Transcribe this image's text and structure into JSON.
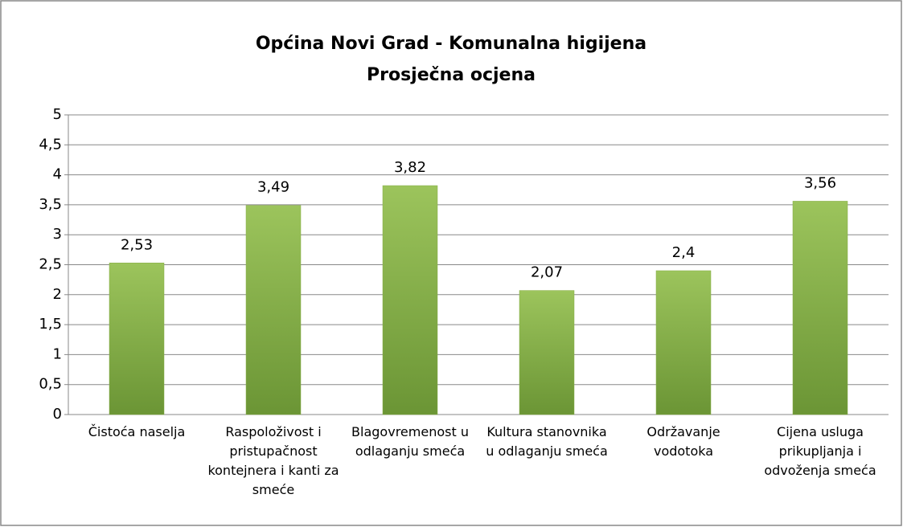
{
  "chart_data": {
    "type": "bar",
    "title": "Općina Novi Grad - Komunalna higijena",
    "subtitle": "Prosječna ocjena",
    "categories": [
      "Čistoća naselja",
      "Raspoloživost i pristupačnost kontejnera i kanti za smeće",
      "Blagovremenost u odlaganju smeća",
      "Kultura stanovnika u odlaganju smeća",
      "Održavanje vodotoka",
      "Cijena usluga prikupljanja i odvoženja smeća"
    ],
    "values": [
      2.53,
      3.49,
      3.82,
      2.07,
      2.4,
      3.56
    ],
    "value_labels": [
      "2,53",
      "3,49",
      "3,82",
      "2,07",
      "2,4",
      "3,56"
    ],
    "color": "#86ad47",
    "ylim": [
      0,
      5
    ],
    "yticks": [
      0,
      {
        "value": 0.5,
        "label": "0,5"
      },
      1,
      {
        "value": 1.5,
        "label": "1,5"
      },
      2,
      {
        "value": 2.5,
        "label": "2,5"
      },
      3,
      {
        "value": 3.5,
        "label": "3,5"
      },
      4,
      {
        "value": 4.5,
        "label": "4,5"
      },
      5
    ],
    "grid": true
  }
}
